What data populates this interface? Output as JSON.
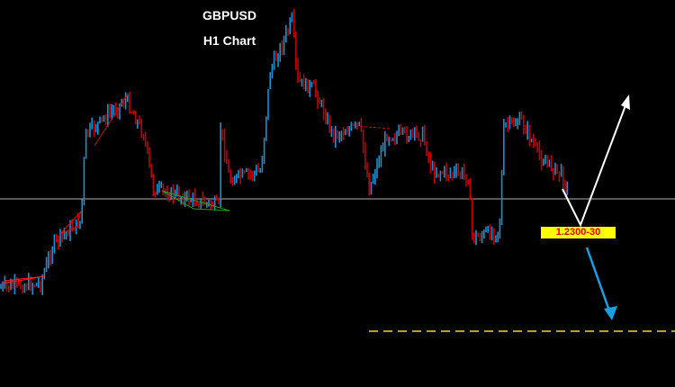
{
  "chart_data": {
    "type": "candlestick",
    "title": "GBPUSD",
    "subtitle": "H1 Chart",
    "annotation": "1.2300-30",
    "grid": false,
    "colors": {
      "background": "#000000",
      "bull_candle": "#1e90d0",
      "bear_candle": "#c00000",
      "level_line": "#b0b0b0",
      "target_line": "#b8a030",
      "up_arrow": "#ffffff",
      "down_arrow": "#1aa0e0",
      "label_bg": "#ffff00",
      "label_text": "#e00000"
    }
  }
}
